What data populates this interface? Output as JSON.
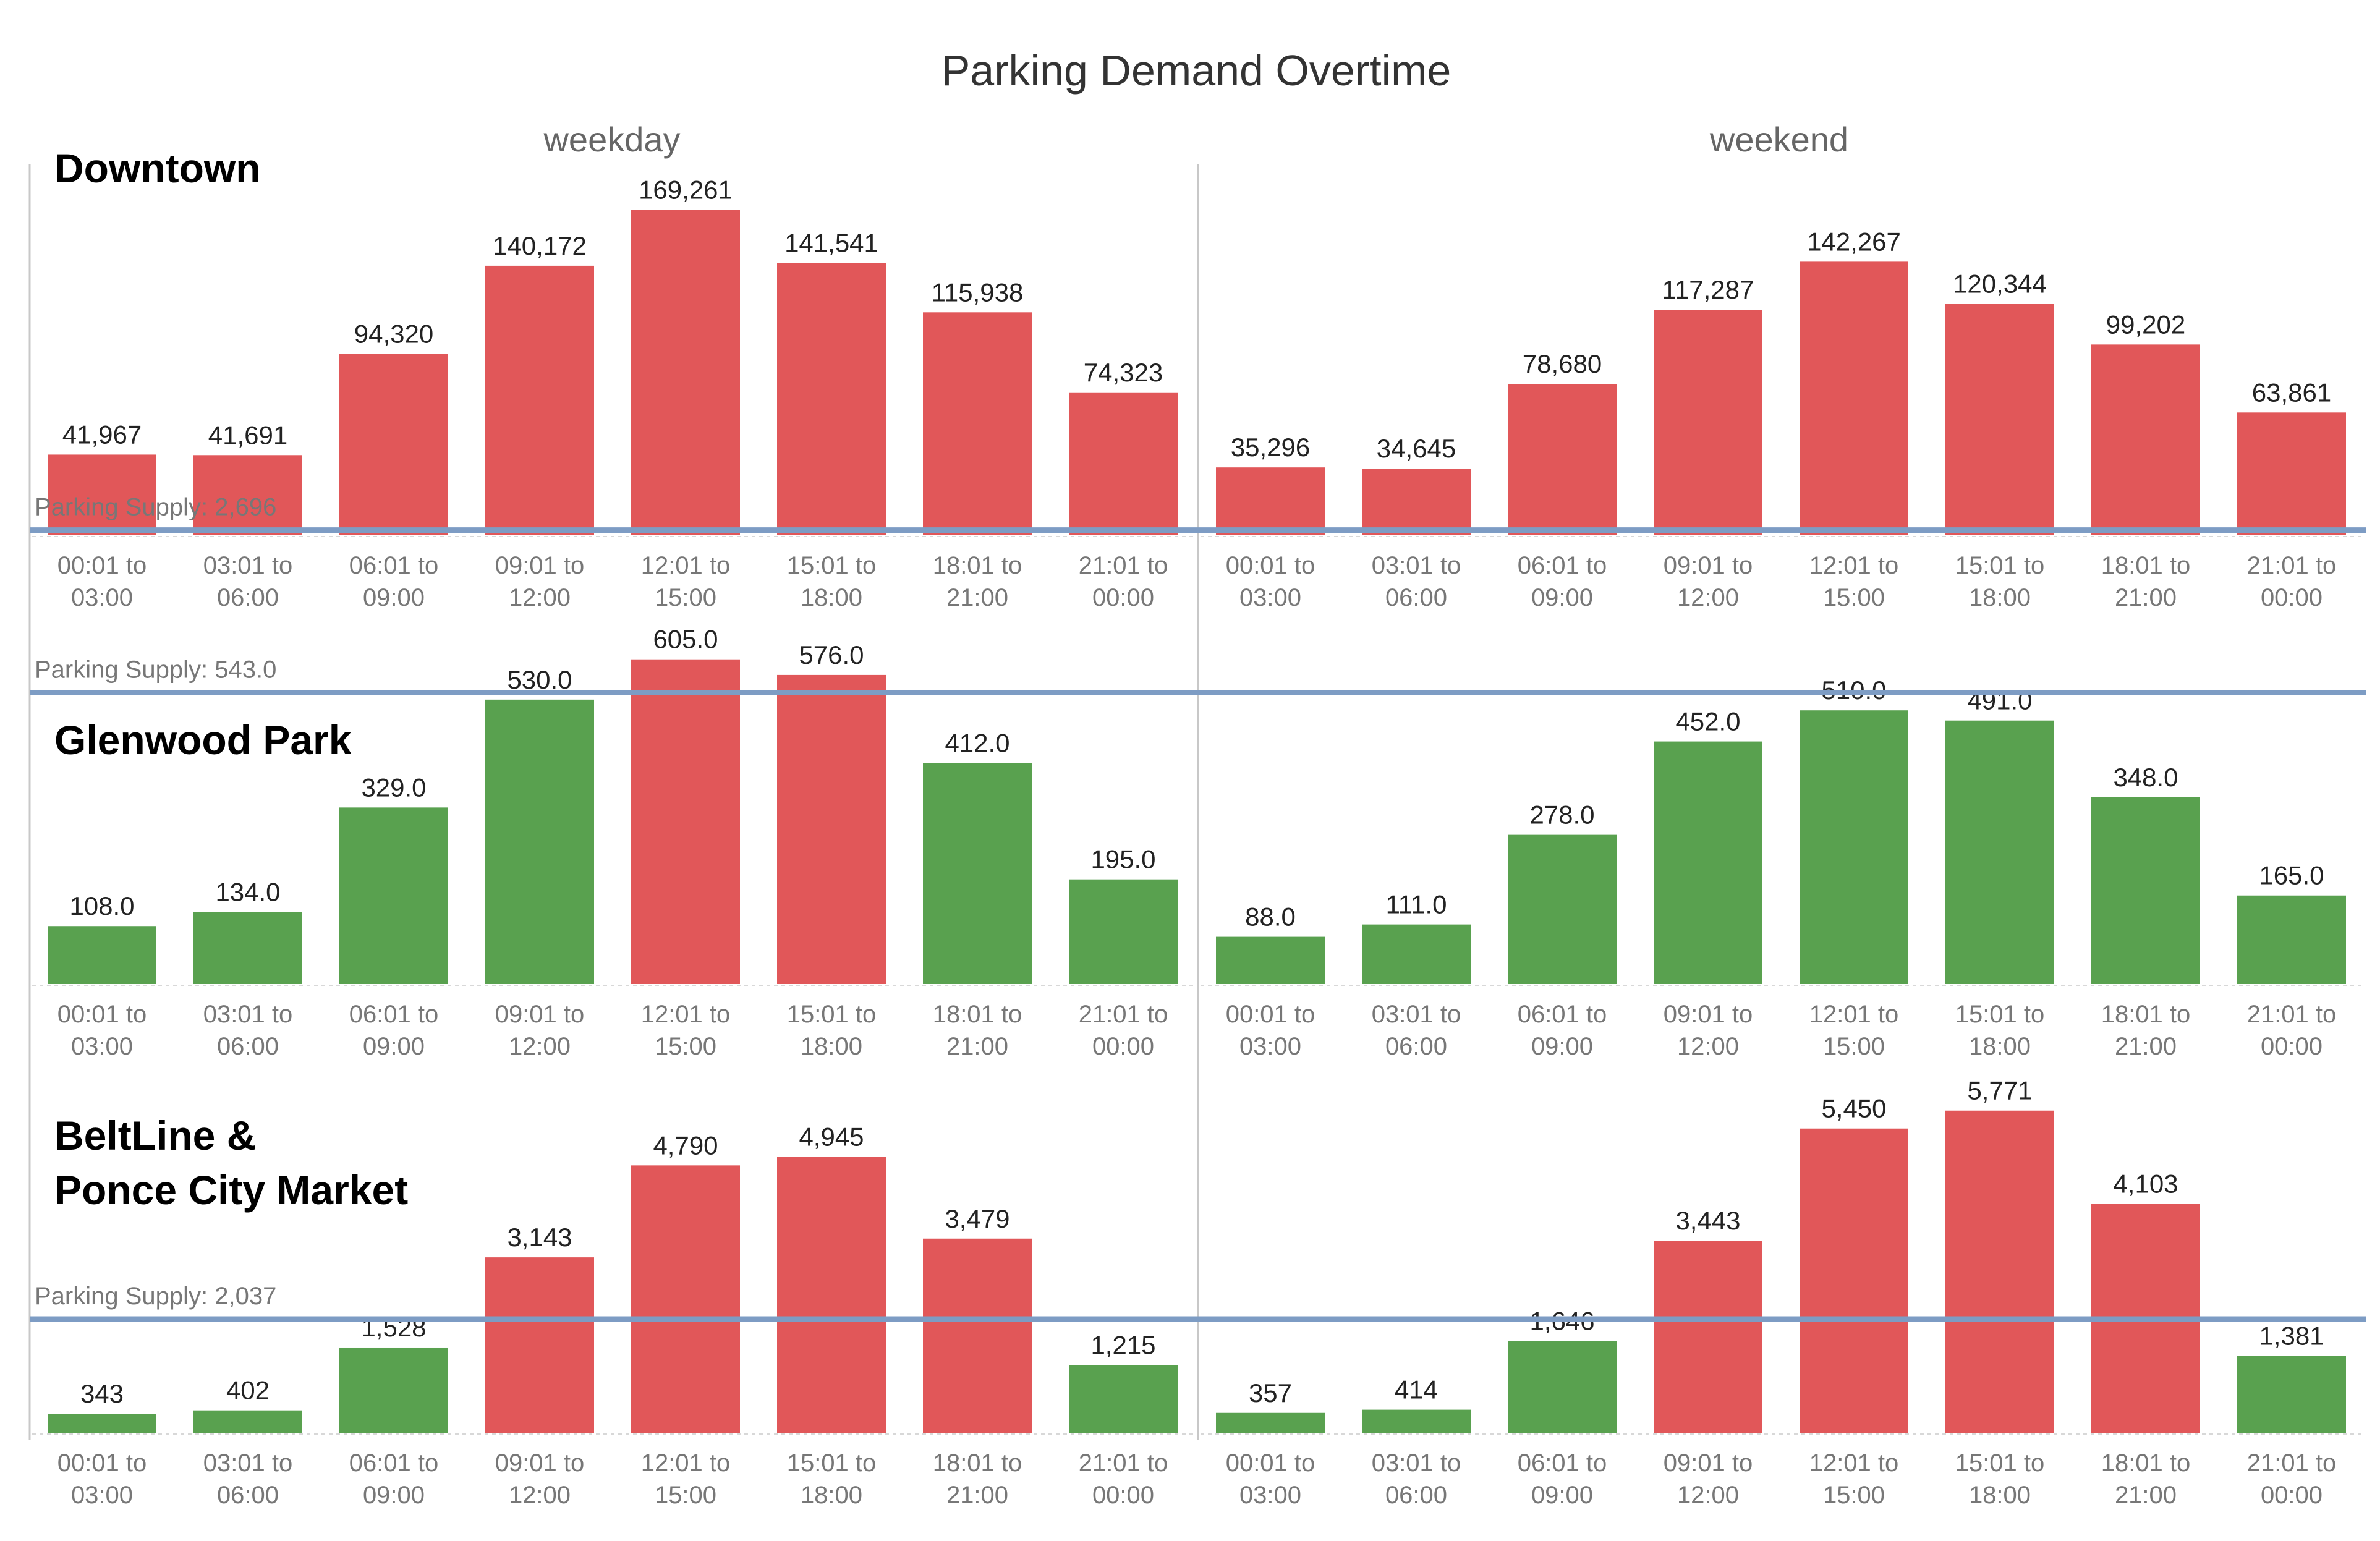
{
  "colors": {
    "over_supply": "#e15759",
    "under_supply": "#59a14f",
    "supply_line": "#7d9cc4",
    "divider": "#c8c8c8",
    "baseline": "#d8d8d8"
  },
  "chart_data": {
    "type": "bar",
    "title": "Parking Demand Overtime",
    "columns": [
      "weekday",
      "weekend"
    ],
    "categories": [
      "00:01 to\n03:00",
      "03:01 to\n06:00",
      "06:01 to\n09:00",
      "09:01 to\n12:00",
      "12:01 to\n15:00",
      "15:01 to\n18:00",
      "18:01 to\n21:00",
      "21:01 to\n00:00"
    ],
    "rows": [
      {
        "region": "Downtown",
        "supply_label": "Parking Supply: 2,696",
        "supply": 2696,
        "ylim": [
          0,
          180000
        ],
        "weekday": [
          41967,
          41691,
          94320,
          140172,
          169261,
          141541,
          115938,
          74323
        ],
        "weekday_labels": [
          "41,967",
          "41,691",
          "94,320",
          "140,172",
          "169,261",
          "141,541",
          "115,938",
          "74,323"
        ],
        "weekend": [
          35296,
          34645,
          78680,
          117287,
          142267,
          120344,
          99202,
          63861
        ],
        "weekend_labels": [
          "35,296",
          "34,645",
          "78,680",
          "117,287",
          "142,267",
          "120,344",
          "99,202",
          "63,861"
        ]
      },
      {
        "region": "Glenwood Park",
        "supply_label": "Parking Supply: 543.0",
        "supply": 543,
        "ylim": [
          0,
          645
        ],
        "weekday": [
          108,
          134,
          329,
          530,
          605,
          576,
          412,
          195
        ],
        "weekday_labels": [
          "108.0",
          "134.0",
          "329.0",
          "530.0",
          "605.0",
          "576.0",
          "412.0",
          "195.0"
        ],
        "weekend": [
          88,
          111,
          278,
          452,
          510,
          491,
          348,
          165
        ],
        "weekend_labels": [
          "88.0",
          "111.0",
          "278.0",
          "452.0",
          "510.0",
          "491.0",
          "348.0",
          "165.0"
        ]
      },
      {
        "region": "BeltLine &\nPonce City Market",
        "supply_label": "Parking Supply: 2,037",
        "supply": 2037,
        "ylim": [
          0,
          6200
        ],
        "weekday": [
          343,
          402,
          1528,
          3143,
          4790,
          4945,
          3479,
          1215
        ],
        "weekday_labels": [
          "343",
          "402",
          "1,528",
          "3,143",
          "4,790",
          "4,945",
          "3,479",
          "1,215"
        ],
        "weekend": [
          357,
          414,
          1646,
          3443,
          5450,
          5771,
          4103,
          1381
        ],
        "weekend_labels": [
          "357",
          "414",
          "1,646",
          "3,443",
          "5,450",
          "5,771",
          "4,103",
          "1,381"
        ]
      }
    ]
  }
}
